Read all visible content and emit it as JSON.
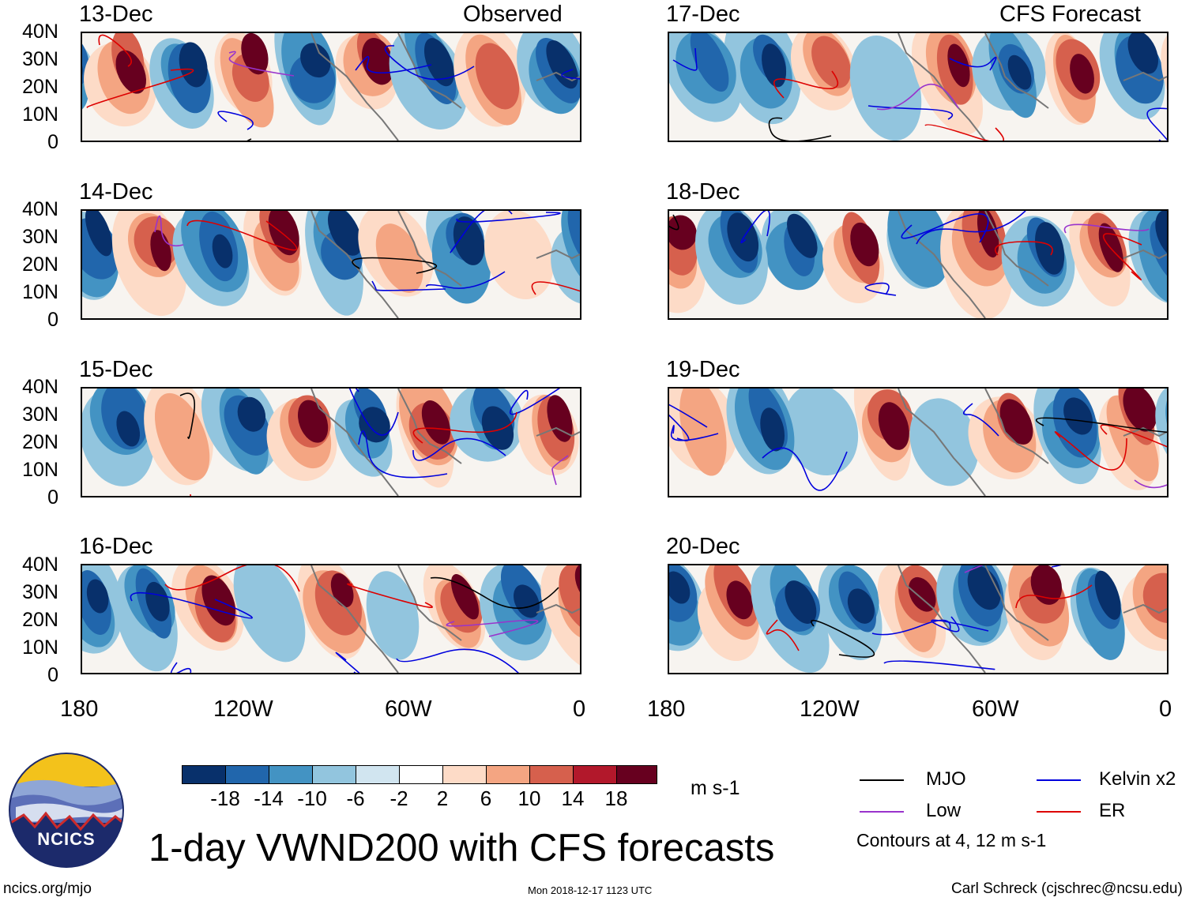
{
  "header": {
    "left": "Observed",
    "right": "CFS Forecast"
  },
  "panels": {
    "observed": [
      {
        "date": "13-Dec"
      },
      {
        "date": "14-Dec"
      },
      {
        "date": "15-Dec"
      },
      {
        "date": "16-Dec"
      }
    ],
    "forecast": [
      {
        "date": "17-Dec"
      },
      {
        "date": "18-Dec"
      },
      {
        "date": "19-Dec"
      },
      {
        "date": "20-Dec"
      }
    ]
  },
  "axes": {
    "lat_labels": [
      "40N",
      "30N",
      "20N",
      "10N",
      "0"
    ],
    "lon_labels": [
      "180",
      "120W",
      "60W",
      "0"
    ]
  },
  "colorbar": {
    "labels": [
      "-18",
      "-14",
      "-10",
      "-6",
      "-2",
      "2",
      "6",
      "10",
      "14",
      "18"
    ],
    "units": "m s-1",
    "colors": [
      "#08306b",
      "#2166ac",
      "#4393c3",
      "#92c5de",
      "#d1e5f0",
      "#ffffff",
      "#fddbc7",
      "#f4a582",
      "#d6604d",
      "#b2182b",
      "#67001f"
    ]
  },
  "legend": {
    "mjo": "MJO",
    "kelvin": "Kelvin x2",
    "low": "Low",
    "er": "ER",
    "note": "Contours at 4, 12 m s-1",
    "colors": {
      "mjo": "#000000",
      "kelvin": "#0000dd",
      "low": "#9933cc",
      "er": "#dd0000"
    }
  },
  "logo": {
    "text": "NCICS"
  },
  "title": "1-day VWND200 with CFS forecasts",
  "footer": {
    "left": "ncics.org/mjo",
    "center": "Mon 2018-12-17 1123 UTC",
    "right": "Carl Schreck (cjschrec@ncsu.edu)"
  }
}
